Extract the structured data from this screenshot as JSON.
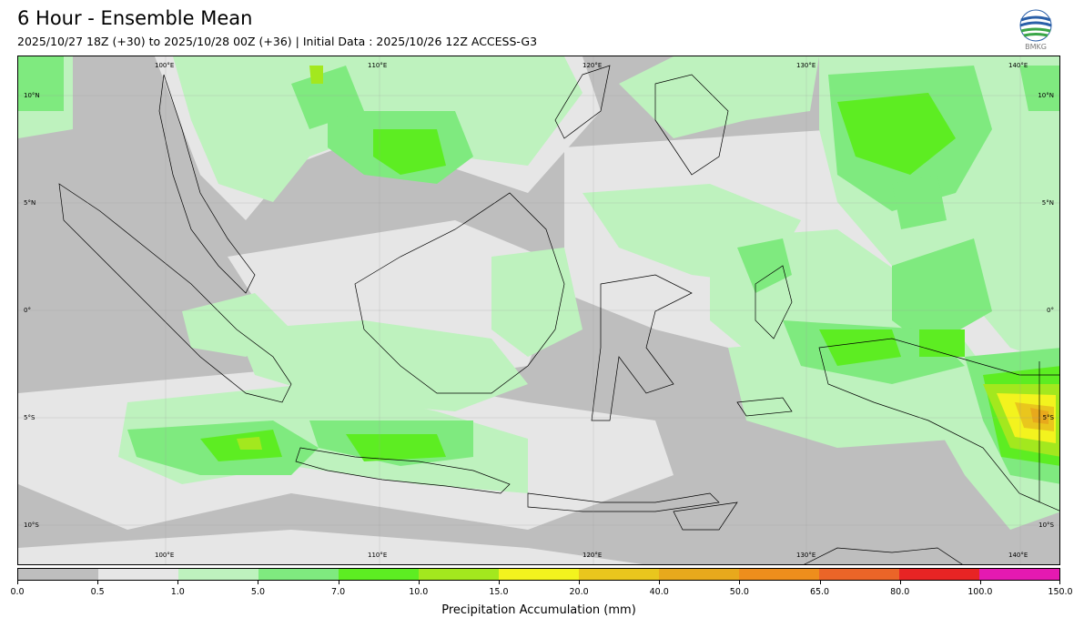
{
  "header": {
    "title": "6 Hour - Ensemble Mean",
    "subtitle": "2025/10/27 18Z (+30) to 2025/10/28 00Z (+36) | Initial Data : 2025/10/26 12Z ACCESS-G3",
    "logo_text": "BMKG"
  },
  "map": {
    "lon_labels": [
      "100°E",
      "110°E",
      "120°E",
      "130°E",
      "140°E"
    ],
    "lat_labels": [
      "10°N",
      "5°N",
      "0°",
      "5°S",
      "10°S"
    ],
    "lon_range": [
      93,
      142
    ],
    "lat_range": [
      -12,
      11.5
    ],
    "colors": {
      "below_0_5": "#bebebe",
      "0_5_to_1": "#e6e6e6",
      "1_to_5": "#bef2be",
      "5_to_7": "#7fea7f",
      "7_to_10": "#5ded22",
      "10_to_15": "#a3e81e",
      "15_to_20": "#f3f31e",
      "20_to_40": "#e9c61d",
      "40_to_50": "#e8a91c"
    }
  },
  "colorbar": {
    "label": "Precipitation Accumulation (mm)",
    "ticks": [
      "0.0",
      "0.5",
      "1.0",
      "5.0",
      "7.0",
      "10.0",
      "15.0",
      "20.0",
      "40.0",
      "50.0",
      "65.0",
      "80.0",
      "100.0",
      "150.0"
    ],
    "colors": [
      "#bebebe",
      "#e6e6e6",
      "#bef2be",
      "#7fea7f",
      "#5ded22",
      "#a3e81e",
      "#f3f31e",
      "#e9c61d",
      "#e8a91c",
      "#ee8e1c",
      "#eb6528",
      "#e82424",
      "#e519b1"
    ]
  }
}
